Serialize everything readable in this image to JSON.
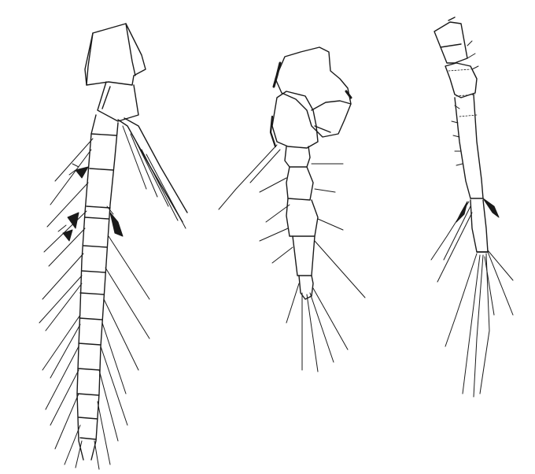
{
  "figure": {
    "ink_color": "#1a1a1a",
    "background_color": "#ffffff",
    "panels": [
      {
        "name": "left-appendage",
        "segments": 12,
        "setae_tufts": 3
      },
      {
        "name": "middle-appendage",
        "segments": 6
      },
      {
        "name": "right-appendage",
        "segments": 5
      }
    ]
  }
}
